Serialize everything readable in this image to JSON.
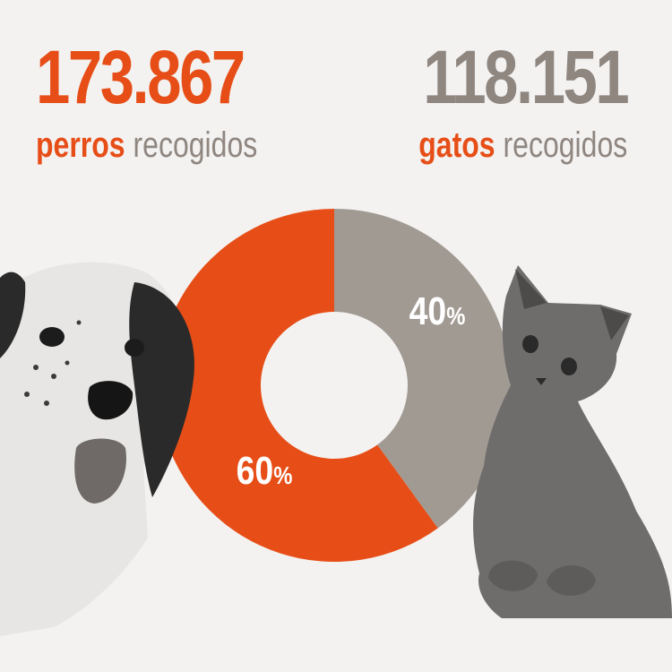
{
  "dogs": {
    "count": "173.867",
    "keyword": "perros",
    "rest": " recogidos"
  },
  "cats": {
    "count": "118.151",
    "keyword": "gatos",
    "rest": " recogidos"
  },
  "colors": {
    "orange": "#e74e17",
    "gray": "#8f8680",
    "pie_gray": "#a19a93",
    "photo_dark": "#2a2a2a"
  },
  "images": {
    "left": "dog-photo",
    "right": "cat-photo"
  },
  "chart_data": {
    "type": "pie",
    "categories": [
      "perros",
      "gatos"
    ],
    "values": [
      60,
      40
    ],
    "labels": [
      "60",
      "40"
    ],
    "unit": "%",
    "donut": true
  }
}
